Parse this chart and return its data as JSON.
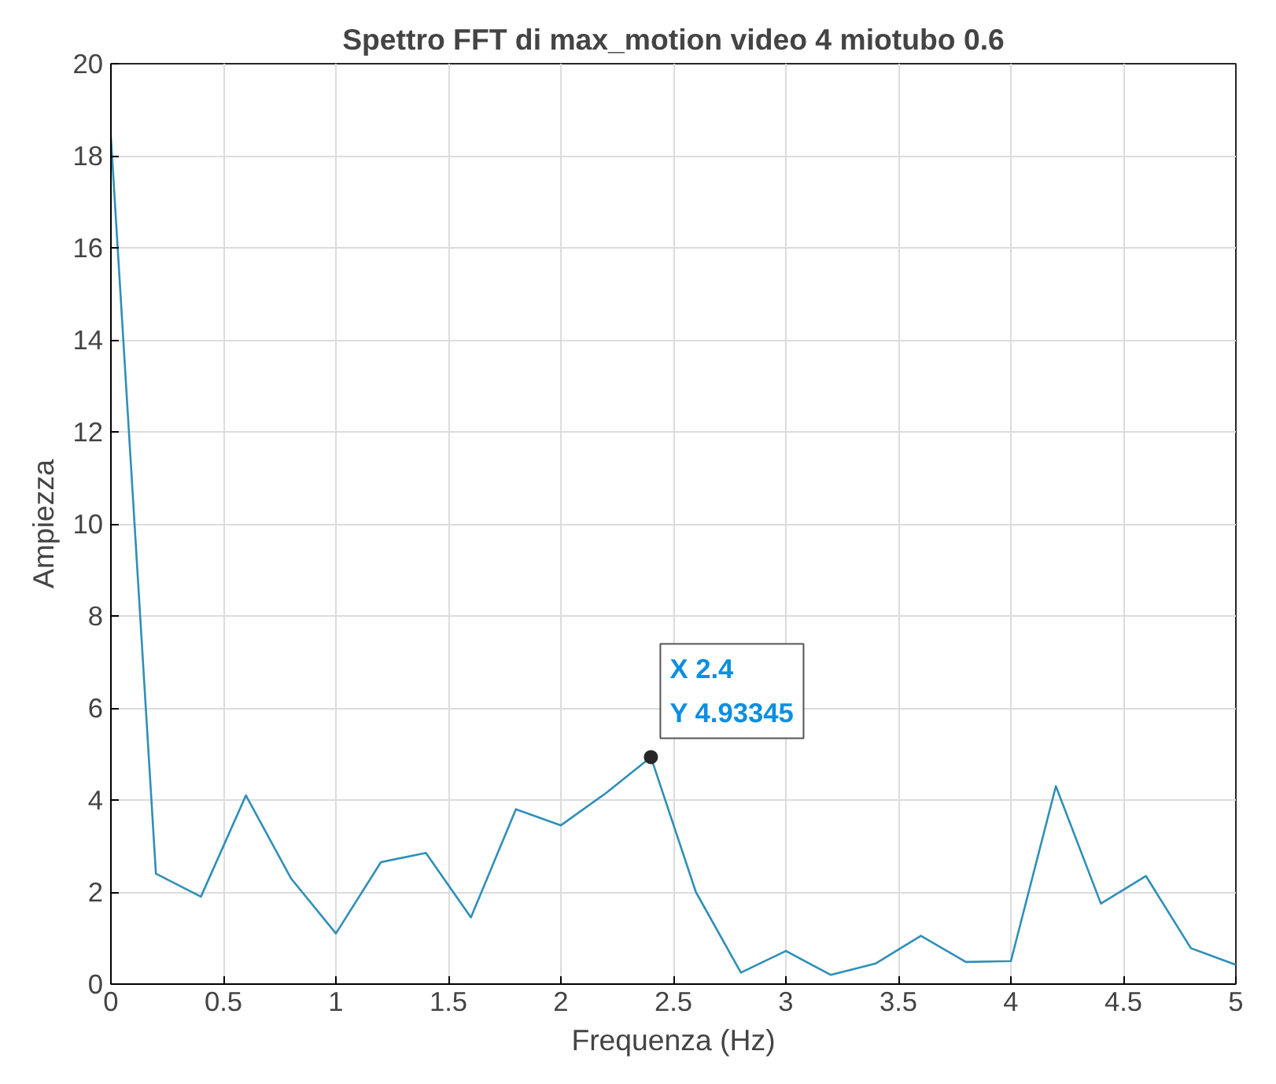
{
  "chart_data": {
    "type": "line",
    "title": "Spettro FFT di max_motion video 4 miotubo 0.6",
    "xlabel": "Frequenza (Hz)",
    "ylabel": "Ampiezza",
    "x": [
      0,
      0.2,
      0.4,
      0.6,
      0.8,
      1.0,
      1.2,
      1.4,
      1.6,
      1.8,
      2.0,
      2.2,
      2.4,
      2.6,
      2.8,
      3.0,
      3.2,
      3.4,
      3.6,
      3.8,
      4.0,
      4.2,
      4.4,
      4.6,
      4.8,
      5.0
    ],
    "series": [
      {
        "color": "#2f8fb8",
        "values": [
          18.4,
          2.4,
          1.9,
          4.1,
          2.3,
          1.1,
          2.65,
          2.85,
          1.45,
          3.8,
          3.45,
          4.15,
          4.93345,
          2.0,
          0.25,
          0.72,
          0.2,
          0.45,
          1.05,
          0.48,
          0.5,
          4.3,
          1.75,
          2.35,
          0.78,
          0.42
        ]
      }
    ],
    "xlim": [
      0,
      5
    ],
    "ylim": [
      0,
      20
    ],
    "xticks": [
      0,
      0.5,
      1,
      1.5,
      2,
      2.5,
      3,
      3.5,
      4,
      4.5,
      5
    ],
    "yticks": [
      0,
      2,
      4,
      6,
      8,
      10,
      12,
      14,
      16,
      18,
      20
    ],
    "grid": true,
    "marker": "none",
    "line_style": "solid",
    "annotations": [
      {
        "text": "X 2.4\nY 4.93345",
        "x": 2.4,
        "y": 4.93345
      }
    ]
  }
}
